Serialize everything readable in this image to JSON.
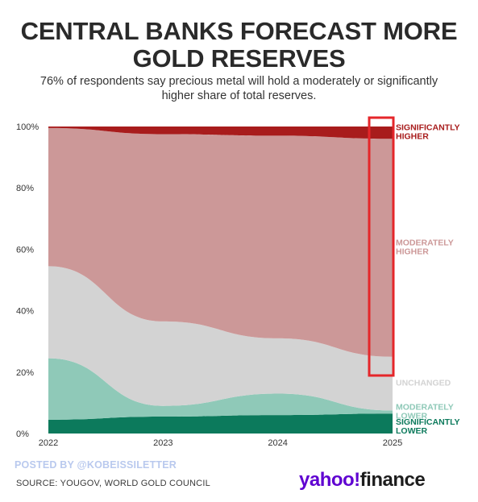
{
  "header": {
    "title_line1": "CENTRAL BANKS FORECAST MORE",
    "title_line2": "GOLD RESERVES",
    "subtitle_line1": "76% of respondents say precious metal will hold a moderately or significantly",
    "subtitle_line2": "higher share of total reserves."
  },
  "footer": {
    "posted_by": "POSTED BY @KOBEISSILETTER",
    "source": "SOURCE: YOUGOV, WORLD GOLD COUNCIL",
    "logo_yahoo": "yahoo!",
    "logo_finance": "finance"
  },
  "chart_data": {
    "type": "area",
    "stacked": true,
    "x": [
      "2022",
      "2023",
      "2024",
      "2025"
    ],
    "y_ticks": [
      "0%",
      "20%",
      "40%",
      "60%",
      "80%",
      "100%"
    ],
    "ylim": [
      0,
      100
    ],
    "highlight": "2025",
    "series": [
      {
        "name": "SIGNIFICANTLY LOWER",
        "label_lines": [
          "SIGNIFICANTLY",
          "LOWER"
        ],
        "color": "#0c7a5c",
        "label_color": "#0c7a5c",
        "values": [
          4.5,
          5.5,
          6,
          6.5
        ]
      },
      {
        "name": "MODERATELY LOWER",
        "label_lines": [
          "MODERATELY",
          "LOWER"
        ],
        "color": "#8fc9b8",
        "label_color": "#8fc9b8",
        "values": [
          20,
          3.5,
          7,
          1
        ]
      },
      {
        "name": "UNCHANGED",
        "label_lines": [
          "UNCHANGED"
        ],
        "color": "#d3d3d3",
        "label_color": "#d3d3d3",
        "values": [
          30,
          27.5,
          18,
          17.5
        ]
      },
      {
        "name": "MODERATELY HIGHER",
        "label_lines": [
          "MODERATELY",
          "HIGHER"
        ],
        "color": "#cc9898",
        "label_color": "#cc9898",
        "values": [
          45,
          61,
          66,
          71
        ]
      },
      {
        "name": "SIGNIFICANTLY HIGHER",
        "label_lines": [
          "SIGNIFICANTLY",
          "HIGHER"
        ],
        "color": "#a81c1c",
        "label_color": "#a81c1c",
        "values": [
          0.5,
          2.5,
          3,
          4
        ]
      }
    ]
  }
}
